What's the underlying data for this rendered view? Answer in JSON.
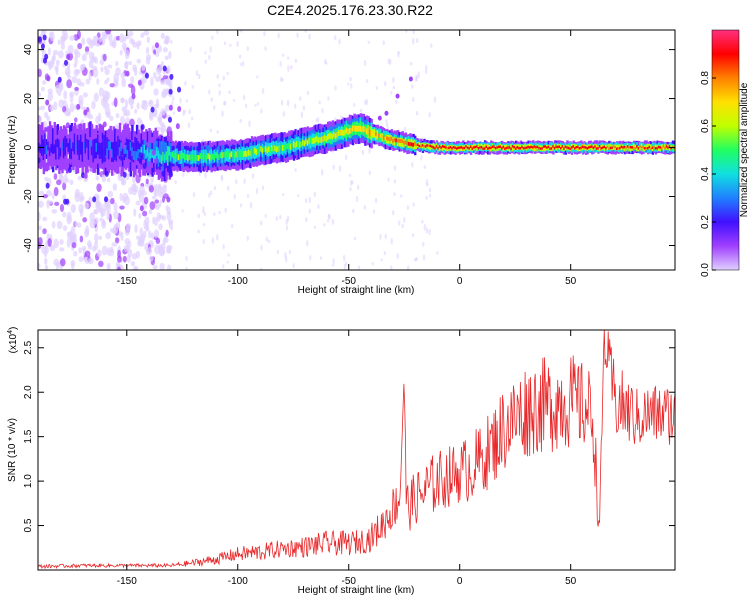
{
  "title": "C2E4.2025.176.23.30.R22",
  "colors": {
    "snr_line": "#e8282a",
    "axis": "#000000",
    "background": "#ffffff"
  },
  "chart_data": [
    {
      "type": "heatmap",
      "xlabel": "Height of straight line (km)",
      "ylabel": "Frequency (Hz)",
      "xlim": [
        -190,
        97
      ],
      "ylim": [
        -50,
        48
      ],
      "xticks": [
        -150,
        -100,
        -50,
        0,
        50
      ],
      "yticks": [
        -40,
        -20,
        0,
        20,
        40
      ],
      "colorbar": {
        "label": "Normalized spectral amplitude",
        "range": [
          0,
          1
        ],
        "ticks": [
          "0.0",
          "0.2",
          "0.4",
          "0.6",
          "0.8"
        ],
        "colormap": [
          "#e0d0ff",
          "#a040ff",
          "#4010ff",
          "#2080ff",
          "#10e0e0",
          "#20ff60",
          "#c0ff00",
          "#ffe000",
          "#ff8000",
          "#ff0000",
          "#ff3080"
        ]
      },
      "ridge_frequency": {
        "x": [
          -190,
          -170,
          -150,
          -135,
          -120,
          -100,
          -90,
          -80,
          -70,
          -60,
          -50,
          -45,
          -40,
          -35,
          -30,
          -25,
          -20,
          -10,
          0,
          20,
          40,
          60,
          80,
          97
        ],
        "y": [
          0,
          0,
          -1,
          -3,
          -4,
          -3,
          -1,
          0,
          2,
          4,
          7,
          8,
          6,
          4,
          3,
          2,
          1,
          0,
          0,
          0,
          0,
          0,
          0,
          0
        ]
      },
      "peak_amplitude": {
        "x": [
          -190,
          -150,
          -130,
          -100,
          -70,
          -50,
          -40,
          -30,
          -20,
          0,
          30,
          60,
          70,
          97
        ],
        "y": [
          0.2,
          0.25,
          0.5,
          0.55,
          0.55,
          0.7,
          0.75,
          0.8,
          0.85,
          0.9,
          0.9,
          0.9,
          0.85,
          0.85
        ]
      }
    },
    {
      "type": "line",
      "xlabel": "Height of straight line (km)",
      "ylabel": "SNR (10 * v/v)",
      "y_multiplier_label": "(x10",
      "y_multiplier_exp": "4",
      "xlim": [
        -190,
        97
      ],
      "ylim": [
        0,
        2.7
      ],
      "xticks": [
        -150,
        -100,
        -50,
        0,
        50
      ],
      "yticks": [
        "0.5",
        "1.0",
        "1.5",
        "2.0",
        "2.5"
      ],
      "series": [
        {
          "x": [
            -190,
            -170,
            -150,
            -130,
            -120,
            -110,
            -100,
            -90,
            -80,
            -70,
            -60,
            -50,
            -45,
            -40,
            -35,
            -30,
            -27,
            -25,
            -24,
            -22,
            -20,
            -15,
            -10,
            -5,
            0,
            5,
            10,
            15,
            20,
            25,
            30,
            35,
            40,
            45,
            50,
            55,
            60,
            63,
            65,
            70,
            75,
            80,
            85,
            90,
            97
          ],
          "y": [
            0.04,
            0.05,
            0.05,
            0.05,
            0.08,
            0.12,
            0.18,
            0.2,
            0.24,
            0.26,
            0.3,
            0.3,
            0.32,
            0.36,
            0.5,
            0.7,
            0.8,
            2.2,
            0.7,
            0.75,
            0.8,
            0.9,
            1.0,
            1.05,
            1.1,
            1.15,
            1.25,
            1.4,
            1.6,
            1.7,
            1.8,
            1.85,
            1.85,
            1.9,
            1.9,
            1.85,
            1.75,
            0.4,
            2.6,
            1.9,
            1.8,
            1.7,
            1.75,
            1.75,
            1.75
          ],
          "noise": [
            0.02,
            0.02,
            0.02,
            0.02,
            0.04,
            0.06,
            0.08,
            0.1,
            0.1,
            0.12,
            0.14,
            0.14,
            0.14,
            0.16,
            0.2,
            0.25,
            0.25,
            0.1,
            0.3,
            0.3,
            0.3,
            0.35,
            0.35,
            0.35,
            0.35,
            0.4,
            0.4,
            0.45,
            0.5,
            0.5,
            0.55,
            0.55,
            0.55,
            0.55,
            0.55,
            0.5,
            0.5,
            0.2,
            0.3,
            0.45,
            0.4,
            0.35,
            0.35,
            0.35,
            0.35
          ]
        }
      ]
    }
  ]
}
